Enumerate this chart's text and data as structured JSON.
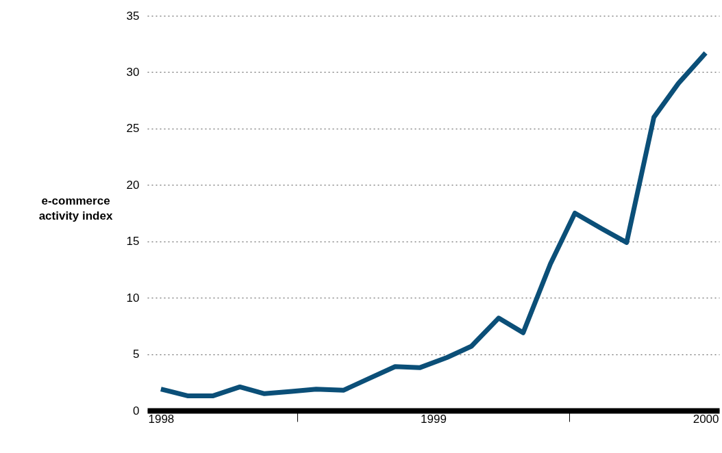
{
  "chart_data": {
    "type": "line",
    "ylabel": "e-commerce\nactivity index",
    "x": [
      1998,
      1998.1,
      1998.19,
      1998.29,
      1998.38,
      1998.48,
      1998.57,
      1998.67,
      1998.76,
      1998.86,
      1998.95,
      1999.05,
      1999.14,
      1999.24,
      1999.33,
      1999.43,
      1999.52,
      1999.62,
      1999.71,
      1999.81,
      1999.9,
      2000
    ],
    "series": [
      {
        "color": "#0b4f78",
        "values": [
          1.9,
          1.3,
          1.3,
          2.1,
          1.5,
          1.7,
          1.9,
          1.8,
          2.8,
          3.9,
          3.8,
          4.7,
          5.7,
          8.2,
          6.9,
          13.0,
          17.5,
          16.1,
          14.9,
          26.0,
          29.0,
          31.7
        ]
      }
    ],
    "xlim": [
      1997.95,
      2000.05
    ],
    "xticks": [
      1998,
      {
        "value": 1998.5,
        "label": null
      },
      1999,
      {
        "value": 1999.5,
        "label": null
      },
      2000
    ],
    "ylim": [
      0,
      35
    ],
    "yticks": [
      0,
      5,
      10,
      15,
      20,
      25,
      30,
      35
    ],
    "grid": "y",
    "line_style": "solid",
    "marker": "none"
  }
}
